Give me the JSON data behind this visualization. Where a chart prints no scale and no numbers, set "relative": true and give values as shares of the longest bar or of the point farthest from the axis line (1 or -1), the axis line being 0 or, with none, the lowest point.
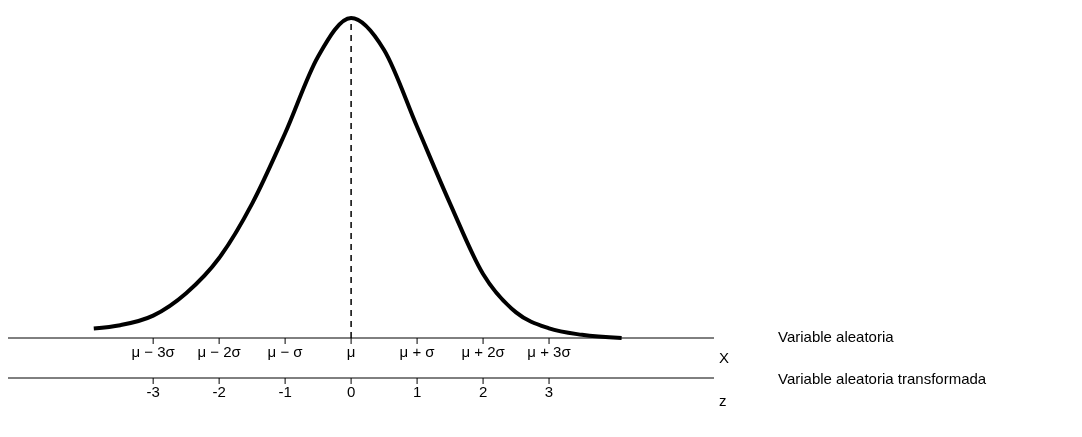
{
  "chart_data": {
    "type": "line",
    "relative": true,
    "xlabel": "X",
    "x2label": "z",
    "x": [
      -3.9,
      -3.5,
      -3,
      -2.5,
      -2,
      -1.5,
      -1,
      -0.5,
      0,
      0.5,
      1,
      1.5,
      2,
      2.5,
      3,
      3.5,
      4.1
    ],
    "series": [
      {
        "color": "#000000",
        "values": [
          0.03,
          0.04,
          0.07,
          0.14,
          0.25,
          0.42,
          0.64,
          0.88,
          1,
          0.9,
          0.66,
          0.42,
          0.2,
          0.08,
          0.03,
          0.01,
          0
        ]
      }
    ],
    "xlim": [
      -5.2,
      5.5
    ],
    "xticks": [
      {
        "value": -3,
        "label": "μ − 3σ"
      },
      {
        "value": -2,
        "label": "μ − 2σ"
      },
      {
        "value": -1,
        "label": "μ − σ"
      },
      {
        "value": 0,
        "label": "μ"
      },
      {
        "value": 1,
        "label": "μ + σ"
      },
      {
        "value": 2,
        "label": "μ + 2σ"
      },
      {
        "value": 3,
        "label": "μ + 3σ"
      }
    ],
    "x2lim": [
      -5.2,
      5.5
    ],
    "x2ticks": [
      -3,
      -2,
      -1,
      0,
      1,
      2,
      3
    ],
    "ref_lines": [
      {
        "axis": "x",
        "value": 0,
        "color": "#000000",
        "line_style": "dashed"
      }
    ],
    "annotations": [
      "Variable aleatoria",
      "Variable aleatoria transformada"
    ],
    "marker": "none",
    "line_style": "solid",
    "grid": false,
    "legend": false
  }
}
